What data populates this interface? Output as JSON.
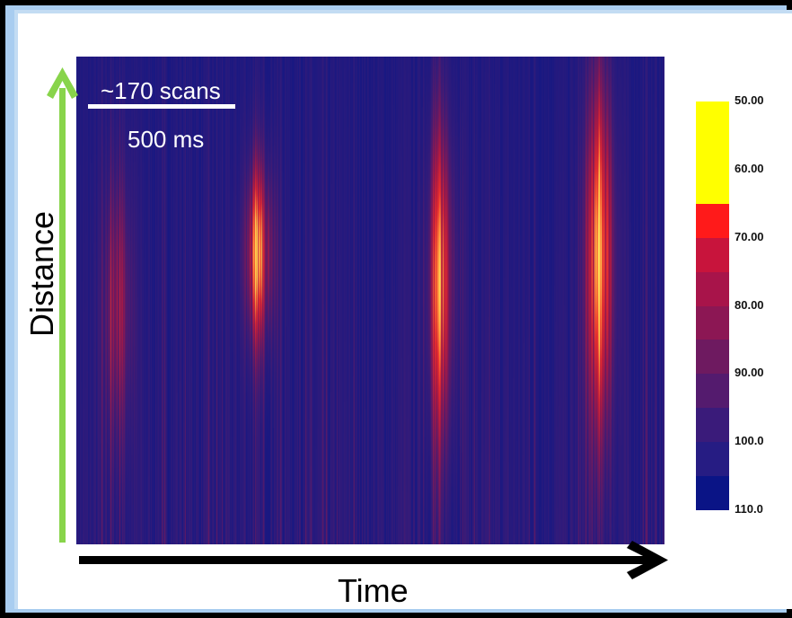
{
  "chart_data": {
    "type": "heatmap",
    "xlabel": "Time",
    "ylabel": "Distance",
    "annotations": {
      "scale_bar_label": "~170 scans",
      "scale_bar_time": "500 ms"
    },
    "colorbar": {
      "tick_labels": [
        "50.00",
        "60.00",
        "70.00",
        "80.00",
        "90.00",
        "100.0",
        "110.0"
      ],
      "range": [
        50,
        110
      ],
      "segments": [
        {
          "from": 50,
          "to": 65,
          "color": "#ffff00"
        },
        {
          "from": 65,
          "to": 70,
          "color": "#ff1a1a"
        },
        {
          "from": 70,
          "to": 75,
          "color": "#c8143c"
        },
        {
          "from": 75,
          "to": 80,
          "color": "#a8144a"
        },
        {
          "from": 80,
          "to": 85,
          "color": "#8c1754"
        },
        {
          "from": 85,
          "to": 90,
          "color": "#6e1a60"
        },
        {
          "from": 90,
          "to": 95,
          "color": "#541b6e"
        },
        {
          "from": 95,
          "to": 100,
          "color": "#3a1b7a"
        },
        {
          "from": 100,
          "to": 105,
          "color": "#261c83"
        },
        {
          "from": 105,
          "to": 110,
          "color": "#0a1486"
        }
      ]
    },
    "colors": {
      "background_low": "#1d1c85",
      "distance_arrow": "#88d44b",
      "time_arrow": "#000000"
    },
    "hotspots": [
      {
        "t": 0.07,
        "d_center": 0.5,
        "d_spread": 0.3,
        "intensity": 0.55
      },
      {
        "t": 0.31,
        "d_center": 0.6,
        "d_spread": 0.2,
        "intensity": 0.9
      },
      {
        "t": 0.62,
        "d_center": 0.55,
        "d_spread": 0.35,
        "intensity": 0.85
      },
      {
        "t": 0.89,
        "d_center": 0.6,
        "d_spread": 0.4,
        "intensity": 1.0
      }
    ]
  }
}
